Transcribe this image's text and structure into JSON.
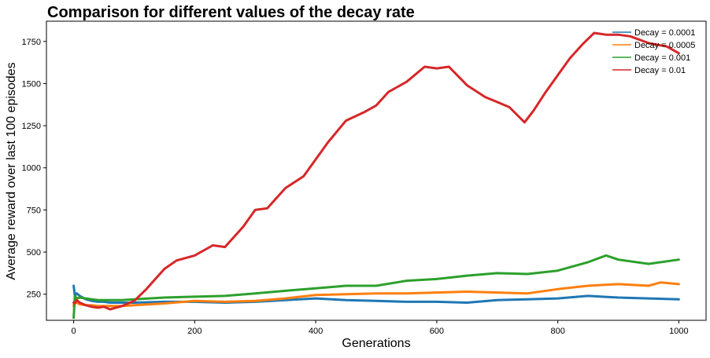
{
  "chart_data": {
    "type": "line",
    "title": "Comparison for different values of the decay rate",
    "xlabel": "Generations",
    "ylabel": "Average reward over last 100 episodes",
    "xlim": [
      -45,
      1045
    ],
    "ylim": [
      95,
      1870
    ],
    "xticks": [
      0,
      200,
      400,
      600,
      800,
      1000
    ],
    "yticks": [
      250,
      500,
      750,
      1000,
      1250,
      1500,
      1750
    ],
    "grid": false,
    "legend_position": "top-right",
    "series": [
      {
        "name": "Decay = 0.0001",
        "color": "#1f77b4",
        "x": [
          0,
          2,
          5,
          10,
          20,
          30,
          40,
          50,
          60,
          80,
          100,
          150,
          200,
          250,
          300,
          350,
          400,
          450,
          500,
          550,
          600,
          650,
          700,
          750,
          800,
          850,
          900,
          950,
          1000
        ],
        "values": [
          300,
          240,
          255,
          240,
          220,
          210,
          205,
          205,
          200,
          200,
          200,
          205,
          205,
          200,
          205,
          215,
          225,
          215,
          210,
          205,
          205,
          200,
          215,
          220,
          225,
          240,
          230,
          225,
          220
        ]
      },
      {
        "name": "Decay = 0.0005",
        "color": "#ff7f0e",
        "x": [
          0,
          2,
          5,
          10,
          20,
          30,
          40,
          50,
          60,
          80,
          100,
          150,
          200,
          250,
          300,
          350,
          400,
          450,
          500,
          550,
          600,
          650,
          700,
          750,
          800,
          850,
          900,
          950,
          970,
          1000
        ],
        "values": [
          180,
          220,
          200,
          190,
          185,
          185,
          180,
          180,
          180,
          180,
          185,
          195,
          210,
          205,
          210,
          225,
          245,
          250,
          255,
          255,
          260,
          265,
          260,
          255,
          280,
          300,
          310,
          300,
          320,
          310
        ]
      },
      {
        "name": "Decay = 0.001",
        "color": "#2ca02c",
        "x": [
          0,
          2,
          5,
          10,
          20,
          30,
          40,
          50,
          60,
          80,
          100,
          150,
          200,
          250,
          300,
          350,
          400,
          450,
          500,
          550,
          600,
          650,
          700,
          750,
          800,
          850,
          880,
          900,
          950,
          1000
        ],
        "values": [
          110,
          240,
          225,
          230,
          225,
          220,
          215,
          215,
          215,
          215,
          220,
          230,
          235,
          240,
          255,
          270,
          285,
          300,
          300,
          330,
          340,
          360,
          375,
          370,
          390,
          440,
          480,
          455,
          430,
          455
        ]
      },
      {
        "name": "Decay = 0.01",
        "color": "#d62728",
        "x": [
          0,
          2,
          5,
          10,
          20,
          30,
          40,
          50,
          60,
          70,
          80,
          90,
          100,
          120,
          150,
          170,
          200,
          230,
          250,
          280,
          300,
          320,
          350,
          380,
          400,
          420,
          450,
          480,
          500,
          520,
          550,
          580,
          600,
          620,
          650,
          680,
          700,
          720,
          745,
          760,
          780,
          800,
          820,
          840,
          860,
          880,
          900,
          920,
          950,
          980,
          1000
        ],
        "values": [
          200,
          195,
          215,
          200,
          185,
          175,
          170,
          175,
          160,
          170,
          180,
          195,
          210,
          280,
          400,
          450,
          480,
          540,
          530,
          650,
          750,
          760,
          880,
          950,
          1050,
          1150,
          1280,
          1330,
          1370,
          1450,
          1510,
          1600,
          1590,
          1600,
          1490,
          1420,
          1390,
          1360,
          1270,
          1340,
          1450,
          1550,
          1650,
          1730,
          1800,
          1790,
          1790,
          1780,
          1740,
          1720,
          1680
        ]
      }
    ]
  }
}
